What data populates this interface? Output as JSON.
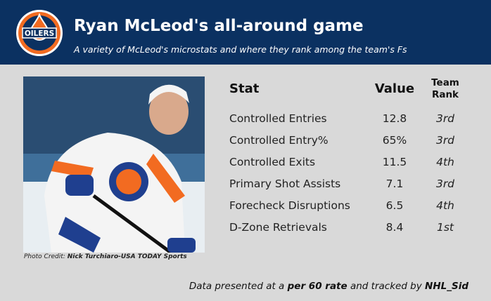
{
  "logo": {
    "text": "OILERS"
  },
  "header": {
    "title": "Ryan McLeod's all-around game",
    "subtitle": "A variety of McLeod's microstats and where they rank among the team's Fs"
  },
  "photo_credit": {
    "label": "Photo Credit: ",
    "source": "Nick Turchiaro-USA TODAY Sports"
  },
  "table": {
    "columns": [
      "Stat",
      "Value",
      "Team Rank"
    ],
    "rows": [
      [
        "Controlled Entries",
        "12.8",
        "3rd"
      ],
      [
        "Controlled Entry%",
        "65%",
        "3rd"
      ],
      [
        "Controlled Exits",
        "11.5",
        "4th"
      ],
      [
        "Primary Shot Assists",
        "7.1",
        "3rd"
      ],
      [
        "Forecheck Disruptions",
        "6.5",
        "4th"
      ],
      [
        "D-Zone Retrievals",
        "8.4",
        "1st"
      ]
    ]
  },
  "footer": {
    "parts": [
      "Data presented at a ",
      "per 60 rate",
      " and tracked by ",
      "NHL_Sid"
    ]
  }
}
